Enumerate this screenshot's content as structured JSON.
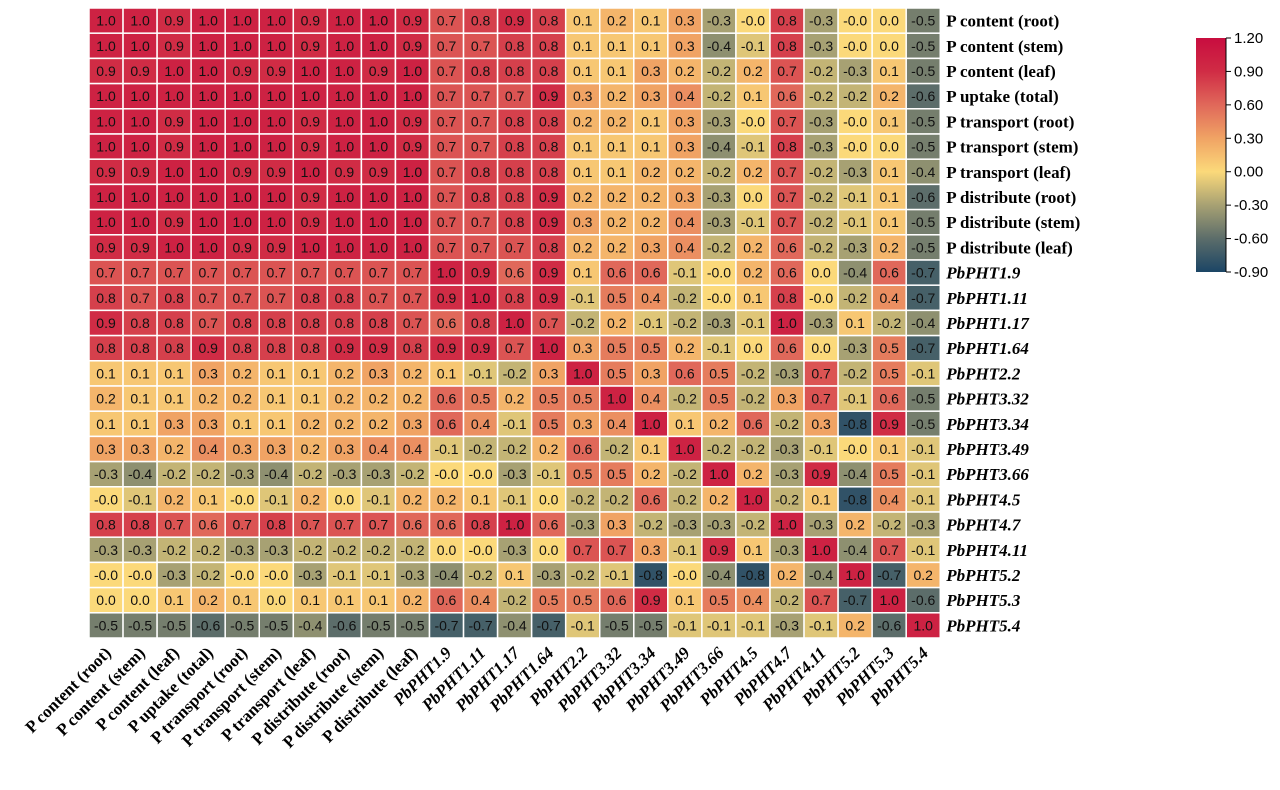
{
  "chart_data": {
    "type": "heatmap",
    "title": "",
    "labels": [
      "P content (root)",
      "P content (stem)",
      "P content (leaf)",
      "P uptake (total)",
      "P transport (root)",
      "P transport (stem)",
      "P transport (leaf)",
      "P distribute (root)",
      "P distribute (stem)",
      "P distribute (leaf)",
      "PbPHT1.9",
      "PbPHT1.11",
      "PbPHT1.17",
      "PbPHT1.64",
      "PbPHT2.2",
      "PbPHT3.32",
      "PbPHT3.34",
      "PbPHT3.49",
      "PbPHT3.66",
      "PbPHT4.5",
      "PbPHT4.7",
      "PbPHT4.11",
      "PbPHT5.2",
      "PbPHT5.3",
      "PbPHT5.4"
    ],
    "italic_from_index": 10,
    "values": [
      [
        1.0,
        1.0,
        0.9,
        1.0,
        1.0,
        1.0,
        0.9,
        1.0,
        1.0,
        0.9,
        0.7,
        0.8,
        0.9,
        0.8,
        0.1,
        0.2,
        0.1,
        0.3,
        -0.3,
        -0.0,
        0.8,
        -0.3,
        -0.0,
        0.0,
        -0.5
      ],
      [
        1.0,
        1.0,
        0.9,
        1.0,
        1.0,
        1.0,
        0.9,
        1.0,
        1.0,
        0.9,
        0.7,
        0.7,
        0.8,
        0.8,
        0.1,
        0.1,
        0.1,
        0.3,
        -0.4,
        -0.1,
        0.8,
        -0.3,
        -0.0,
        0.0,
        -0.5
      ],
      [
        0.9,
        0.9,
        1.0,
        1.0,
        0.9,
        0.9,
        1.0,
        1.0,
        0.9,
        1.0,
        0.7,
        0.8,
        0.8,
        0.8,
        0.1,
        0.1,
        0.3,
        0.2,
        -0.2,
        0.2,
        0.7,
        -0.2,
        -0.3,
        0.1,
        -0.5
      ],
      [
        1.0,
        1.0,
        1.0,
        1.0,
        1.0,
        1.0,
        1.0,
        1.0,
        1.0,
        1.0,
        0.7,
        0.7,
        0.7,
        0.9,
        0.3,
        0.2,
        0.3,
        0.4,
        -0.2,
        0.1,
        0.6,
        -0.2,
        -0.2,
        0.2,
        -0.6
      ],
      [
        1.0,
        1.0,
        0.9,
        1.0,
        1.0,
        1.0,
        0.9,
        1.0,
        1.0,
        0.9,
        0.7,
        0.7,
        0.8,
        0.8,
        0.2,
        0.2,
        0.1,
        0.3,
        -0.3,
        -0.0,
        0.7,
        -0.3,
        -0.0,
        0.1,
        -0.5
      ],
      [
        1.0,
        1.0,
        0.9,
        1.0,
        1.0,
        1.0,
        0.9,
        1.0,
        1.0,
        0.9,
        0.7,
        0.7,
        0.8,
        0.8,
        0.1,
        0.1,
        0.1,
        0.3,
        -0.4,
        -0.1,
        0.8,
        -0.3,
        -0.0,
        0.0,
        -0.5
      ],
      [
        0.9,
        0.9,
        1.0,
        1.0,
        0.9,
        0.9,
        1.0,
        0.9,
        0.9,
        1.0,
        0.7,
        0.8,
        0.8,
        0.8,
        0.1,
        0.1,
        0.2,
        0.2,
        -0.2,
        0.2,
        0.7,
        -0.2,
        -0.3,
        0.1,
        -0.4
      ],
      [
        1.0,
        1.0,
        1.0,
        1.0,
        1.0,
        1.0,
        0.9,
        1.0,
        1.0,
        1.0,
        0.7,
        0.8,
        0.8,
        0.9,
        0.2,
        0.2,
        0.2,
        0.3,
        -0.3,
        0.0,
        0.7,
        -0.2,
        -0.1,
        0.1,
        -0.6
      ],
      [
        1.0,
        1.0,
        0.9,
        1.0,
        1.0,
        1.0,
        0.9,
        1.0,
        1.0,
        1.0,
        0.7,
        0.7,
        0.8,
        0.9,
        0.3,
        0.2,
        0.2,
        0.4,
        -0.3,
        -0.1,
        0.7,
        -0.2,
        -0.1,
        0.1,
        -0.5
      ],
      [
        0.9,
        0.9,
        1.0,
        1.0,
        0.9,
        0.9,
        1.0,
        1.0,
        1.0,
        1.0,
        0.7,
        0.7,
        0.7,
        0.8,
        0.2,
        0.2,
        0.3,
        0.4,
        -0.2,
        0.2,
        0.6,
        -0.2,
        -0.3,
        0.2,
        -0.5
      ],
      [
        0.7,
        0.7,
        0.7,
        0.7,
        0.7,
        0.7,
        0.7,
        0.7,
        0.7,
        0.7,
        1.0,
        0.9,
        0.6,
        0.9,
        0.1,
        0.6,
        0.6,
        -0.1,
        -0.0,
        0.2,
        0.6,
        0.0,
        -0.4,
        0.6,
        -0.7
      ],
      [
        0.8,
        0.7,
        0.8,
        0.7,
        0.7,
        0.7,
        0.8,
        0.8,
        0.7,
        0.7,
        0.9,
        1.0,
        0.8,
        0.9,
        -0.1,
        0.5,
        0.4,
        -0.2,
        -0.0,
        0.1,
        0.8,
        -0.0,
        -0.2,
        0.4,
        -0.7
      ],
      [
        0.9,
        0.8,
        0.8,
        0.7,
        0.8,
        0.8,
        0.8,
        0.8,
        0.8,
        0.7,
        0.6,
        0.8,
        1.0,
        0.7,
        -0.2,
        0.2,
        -0.1,
        -0.2,
        -0.3,
        -0.1,
        1.0,
        -0.3,
        0.1,
        -0.2,
        -0.4
      ],
      [
        0.8,
        0.8,
        0.8,
        0.9,
        0.8,
        0.8,
        0.8,
        0.9,
        0.9,
        0.8,
        0.9,
        0.9,
        0.7,
        1.0,
        0.3,
        0.5,
        0.5,
        0.2,
        -0.1,
        0.0,
        0.6,
        0.0,
        -0.3,
        0.5,
        -0.7
      ],
      [
        0.1,
        0.1,
        0.1,
        0.3,
        0.2,
        0.1,
        0.1,
        0.2,
        0.3,
        0.2,
        0.1,
        -0.1,
        -0.2,
        0.3,
        1.0,
        0.5,
        0.3,
        0.6,
        0.5,
        -0.2,
        -0.3,
        0.7,
        -0.2,
        0.5,
        -0.1
      ],
      [
        0.2,
        0.1,
        0.1,
        0.2,
        0.2,
        0.1,
        0.1,
        0.2,
        0.2,
        0.2,
        0.6,
        0.5,
        0.2,
        0.5,
        0.5,
        1.0,
        0.4,
        -0.2,
        0.5,
        -0.2,
        0.3,
        0.7,
        -0.1,
        0.6,
        -0.5
      ],
      [
        0.1,
        0.1,
        0.3,
        0.3,
        0.1,
        0.1,
        0.2,
        0.2,
        0.2,
        0.3,
        0.6,
        0.4,
        -0.1,
        0.5,
        0.3,
        0.4,
        1.0,
        0.1,
        0.2,
        0.6,
        -0.2,
        0.3,
        -0.8,
        0.9,
        -0.5
      ],
      [
        0.3,
        0.3,
        0.2,
        0.4,
        0.3,
        0.3,
        0.2,
        0.3,
        0.4,
        0.4,
        -0.1,
        -0.2,
        -0.2,
        0.2,
        0.6,
        -0.2,
        0.1,
        1.0,
        -0.2,
        -0.2,
        -0.3,
        -0.1,
        -0.0,
        0.1,
        -0.1
      ],
      [
        -0.3,
        -0.4,
        -0.2,
        -0.2,
        -0.3,
        -0.4,
        -0.2,
        -0.3,
        -0.3,
        -0.2,
        -0.0,
        -0.0,
        -0.3,
        -0.1,
        0.5,
        0.5,
        0.2,
        -0.2,
        1.0,
        0.2,
        -0.3,
        0.9,
        -0.4,
        0.5,
        -0.1
      ],
      [
        -0.0,
        -0.1,
        0.2,
        0.1,
        -0.0,
        -0.1,
        0.2,
        0.0,
        -0.1,
        0.2,
        0.2,
        0.1,
        -0.1,
        0.0,
        -0.2,
        -0.2,
        0.6,
        -0.2,
        0.2,
        1.0,
        -0.2,
        0.1,
        -0.8,
        0.4,
        -0.1
      ],
      [
        0.8,
        0.8,
        0.7,
        0.6,
        0.7,
        0.8,
        0.7,
        0.7,
        0.7,
        0.6,
        0.6,
        0.8,
        1.0,
        0.6,
        -0.3,
        0.3,
        -0.2,
        -0.3,
        -0.3,
        -0.2,
        1.0,
        -0.3,
        0.2,
        -0.2,
        -0.3
      ],
      [
        -0.3,
        -0.3,
        -0.2,
        -0.2,
        -0.3,
        -0.3,
        -0.2,
        -0.2,
        -0.2,
        -0.2,
        0.0,
        -0.0,
        -0.3,
        0.0,
        0.7,
        0.7,
        0.3,
        -0.1,
        0.9,
        0.1,
        -0.3,
        1.0,
        -0.4,
        0.7,
        -0.1
      ],
      [
        -0.0,
        -0.0,
        -0.3,
        -0.2,
        -0.0,
        -0.0,
        -0.3,
        -0.1,
        -0.1,
        -0.3,
        -0.4,
        -0.2,
        0.1,
        -0.3,
        -0.2,
        -0.1,
        -0.8,
        -0.0,
        -0.4,
        -0.8,
        0.2,
        -0.4,
        1.0,
        -0.7,
        0.2
      ],
      [
        0.0,
        0.0,
        0.1,
        0.2,
        0.1,
        0.0,
        0.1,
        0.1,
        0.1,
        0.2,
        0.6,
        0.4,
        -0.2,
        0.5,
        0.5,
        0.6,
        0.9,
        0.1,
        0.5,
        0.4,
        -0.2,
        0.7,
        -0.7,
        1.0,
        -0.6
      ],
      [
        -0.5,
        -0.5,
        -0.5,
        -0.6,
        -0.5,
        -0.5,
        -0.4,
        -0.6,
        -0.5,
        -0.5,
        -0.7,
        -0.7,
        -0.4,
        -0.7,
        -0.1,
        -0.5,
        -0.5,
        -0.1,
        -0.1,
        -0.1,
        -0.3,
        -0.1,
        0.2,
        -0.6,
        1.0
      ]
    ],
    "colorbar": {
      "range": [
        -0.9,
        1.2
      ],
      "ticks": [
        "1.20",
        "0.90",
        "0.60",
        "0.30",
        "0.00",
        "-0.30",
        "-0.60",
        "-0.90"
      ],
      "stops": [
        {
          "value": -0.9,
          "color": "#1b4565"
        },
        {
          "value": -0.6,
          "color": "#5c6d6a"
        },
        {
          "value": -0.3,
          "color": "#a7a173"
        },
        {
          "value": 0.0,
          "color": "#fbd97a"
        },
        {
          "value": 0.3,
          "color": "#f0a364"
        },
        {
          "value": 0.6,
          "color": "#e0685a"
        },
        {
          "value": 0.9,
          "color": "#d02c45"
        },
        {
          "value": 1.2,
          "color": "#c80d3f"
        }
      ]
    },
    "grid_color": "#ffffff",
    "legend_placement": "right"
  }
}
